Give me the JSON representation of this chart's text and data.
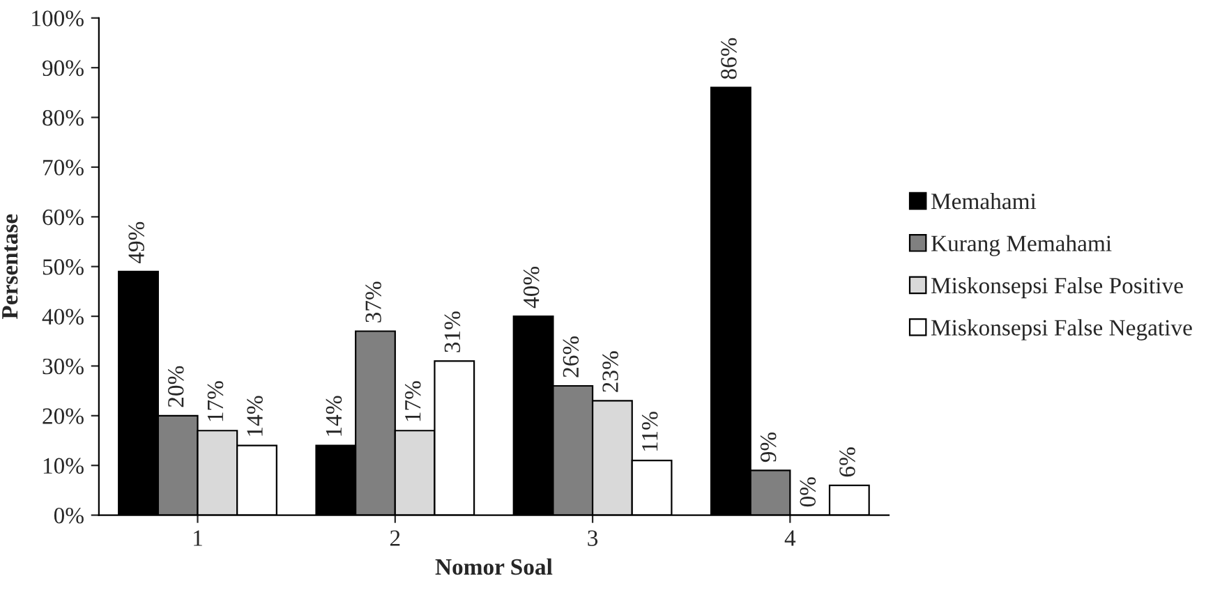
{
  "chart_data": {
    "type": "bar",
    "xlabel": "Nomor Soal",
    "ylabel": "Persentase",
    "categories": [
      "1",
      "2",
      "3",
      "4"
    ],
    "series": [
      {
        "name": "Memahami",
        "color": "#000000",
        "values": [
          49,
          14,
          40,
          86
        ],
        "value_labels": [
          "49%",
          "14%",
          "40%",
          "86%"
        ]
      },
      {
        "name": "Kurang Memahami",
        "color": "#808080",
        "values": [
          20,
          37,
          26,
          9
        ],
        "value_labels": [
          "20%",
          "37%",
          "26%",
          "9%"
        ]
      },
      {
        "name": "Miskonsepsi False Positive",
        "color": "#d9d9d9",
        "values": [
          17,
          17,
          23,
          0
        ],
        "value_labels": [
          "17%",
          "17%",
          "23%",
          "0%"
        ]
      },
      {
        "name": "Miskonsepsi False Negative",
        "color": "#ffffff",
        "values": [
          14,
          31,
          11,
          6
        ],
        "value_labels": [
          "14%",
          "31%",
          "11%",
          "6%"
        ]
      }
    ],
    "ylim": [
      0,
      100
    ],
    "yticks": [
      {
        "value": 0,
        "label": "0%"
      },
      {
        "value": 10,
        "label": "10%"
      },
      {
        "value": 20,
        "label": "20%"
      },
      {
        "value": 30,
        "label": "30%"
      },
      {
        "value": 40,
        "label": "40%"
      },
      {
        "value": 50,
        "label": "50%"
      },
      {
        "value": 60,
        "label": "60%"
      },
      {
        "value": 70,
        "label": "70%"
      },
      {
        "value": 80,
        "label": "80%"
      },
      {
        "value": 90,
        "label": "90%"
      },
      {
        "value": 100,
        "label": "100%"
      }
    ],
    "grid": false,
    "legend": "right"
  }
}
